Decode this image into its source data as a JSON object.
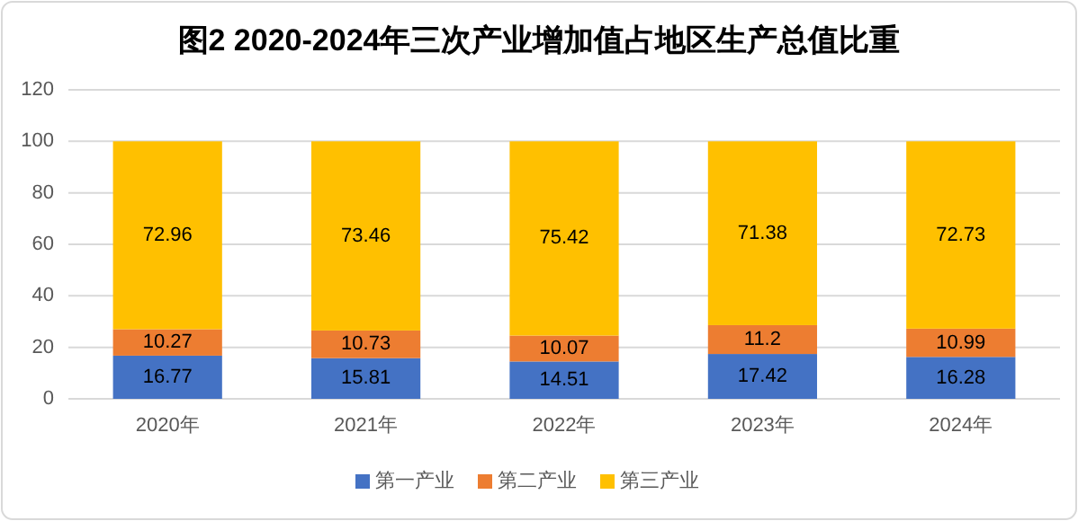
{
  "chart_data": {
    "type": "bar",
    "title": "图2  2020-2024年三次产业增加值占地区生产总值比重",
    "categories": [
      "2020年",
      "2021年",
      "2022年",
      "2023年",
      "2024年"
    ],
    "stacked": true,
    "series": [
      {
        "name": "第一产业",
        "color": "#4472c4",
        "values": [
          16.77,
          15.81,
          14.51,
          17.42,
          16.28
        ]
      },
      {
        "name": "第二产业",
        "color": "#ed7d31",
        "values": [
          10.27,
          10.73,
          10.07,
          11.2,
          10.99
        ]
      },
      {
        "name": "第三产业",
        "color": "#ffc000",
        "values": [
          72.96,
          73.46,
          75.42,
          71.38,
          72.73
        ]
      }
    ],
    "ylim": [
      0,
      120
    ],
    "yticks": [
      0,
      20,
      40,
      60,
      80,
      100,
      120
    ],
    "grid": "y",
    "legend": "bottom",
    "data_labels": true
  }
}
